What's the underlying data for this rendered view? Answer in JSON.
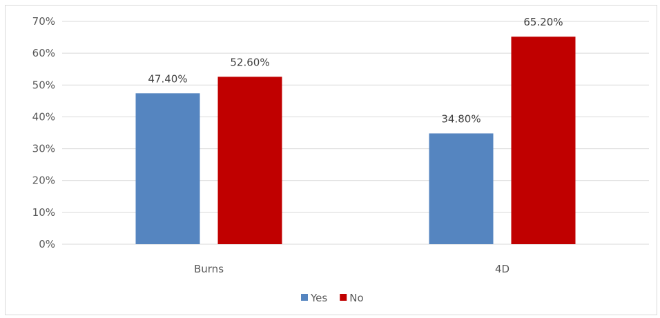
{
  "chart_data": {
    "type": "bar",
    "categories": [
      "Burns",
      "4D"
    ],
    "series": [
      {
        "name": "Yes",
        "values": [
          47.4,
          34.8
        ],
        "labels": [
          "47.40%",
          "34.80%"
        ],
        "color": "#5585c0"
      },
      {
        "name": "No",
        "values": [
          52.6,
          65.2
        ],
        "labels": [
          "52.60%",
          "65.20%"
        ],
        "color": "#c00000"
      }
    ],
    "yticks": [
      "0%",
      "10%",
      "20%",
      "30%",
      "40%",
      "50%",
      "60%",
      "70%"
    ],
    "ylim": [
      0,
      70
    ],
    "grid": true,
    "gridline_color": "#d9d9d9",
    "legend_position": "bottom"
  }
}
